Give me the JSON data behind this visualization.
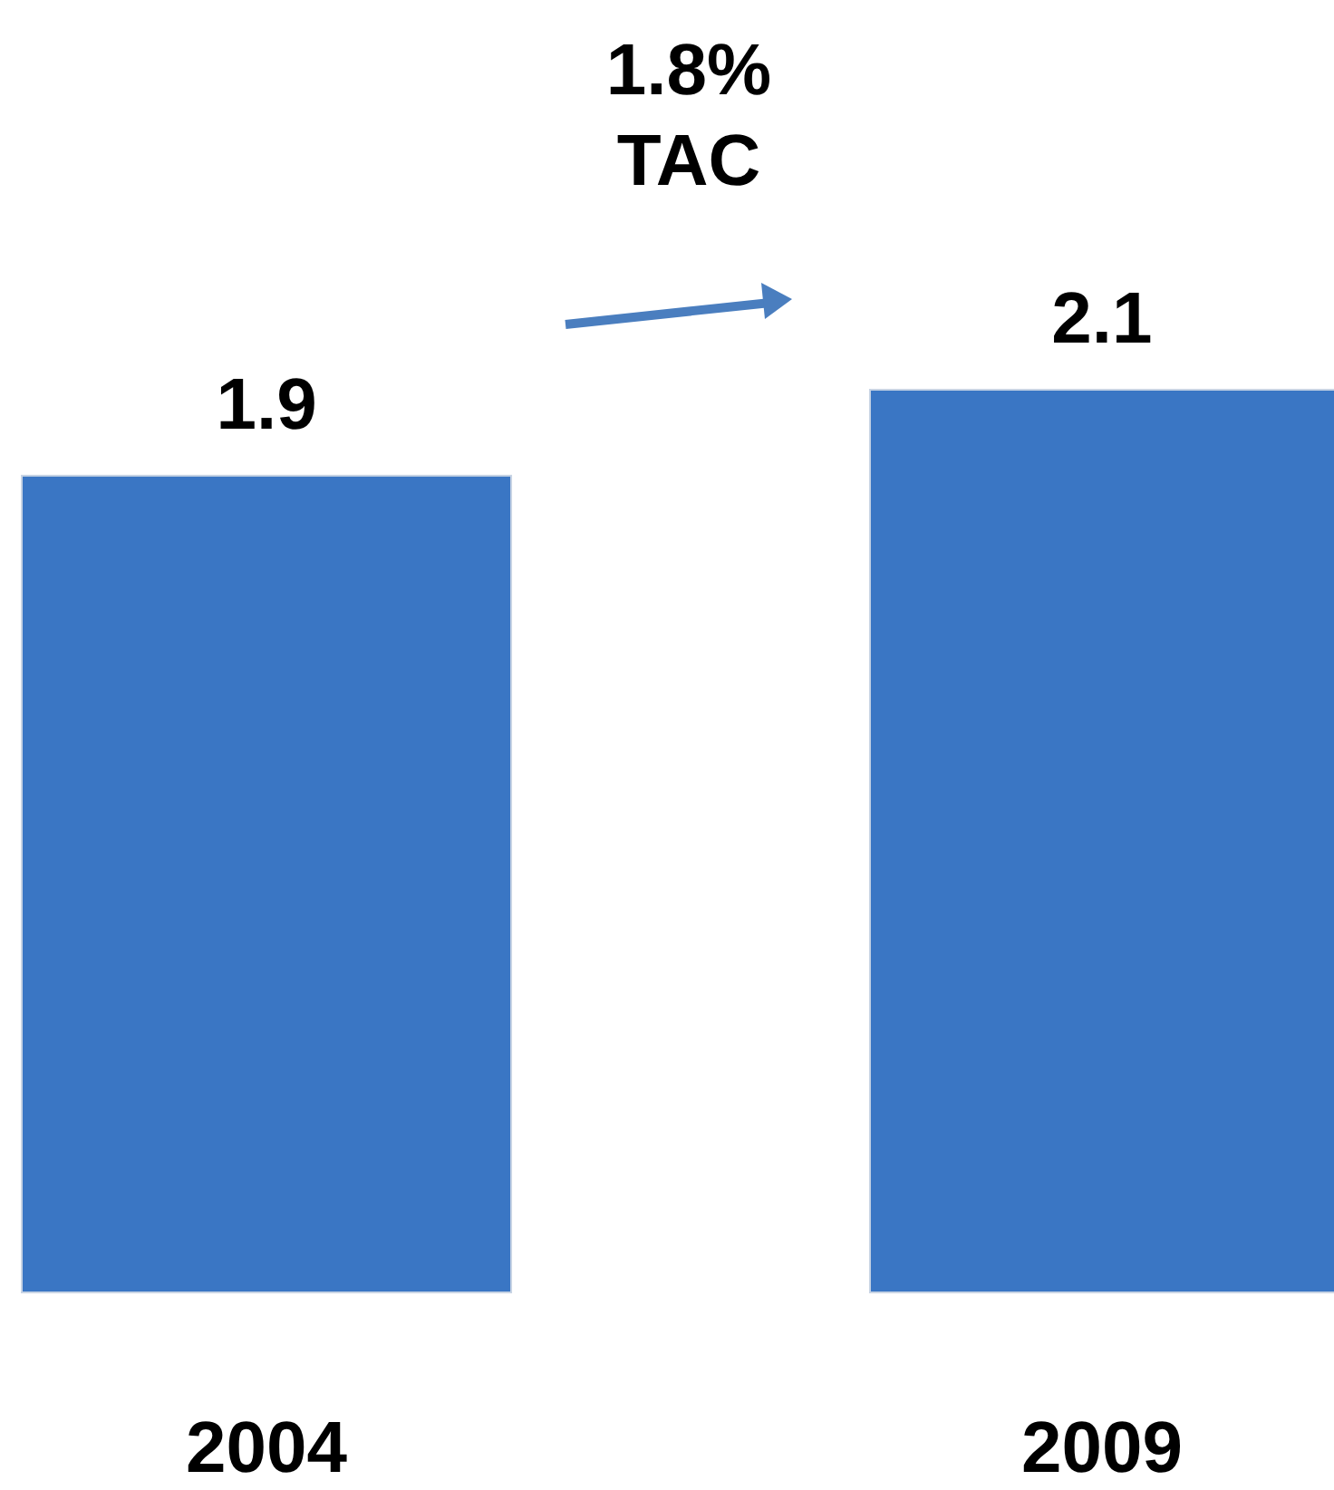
{
  "chart_data": {
    "type": "bar",
    "categories": [
      "2004",
      "2009"
    ],
    "values": [
      1.9,
      2.1
    ],
    "color": "#3a76c4",
    "data_labels": true,
    "annotations": [
      "1.8%\nTAC"
    ]
  }
}
